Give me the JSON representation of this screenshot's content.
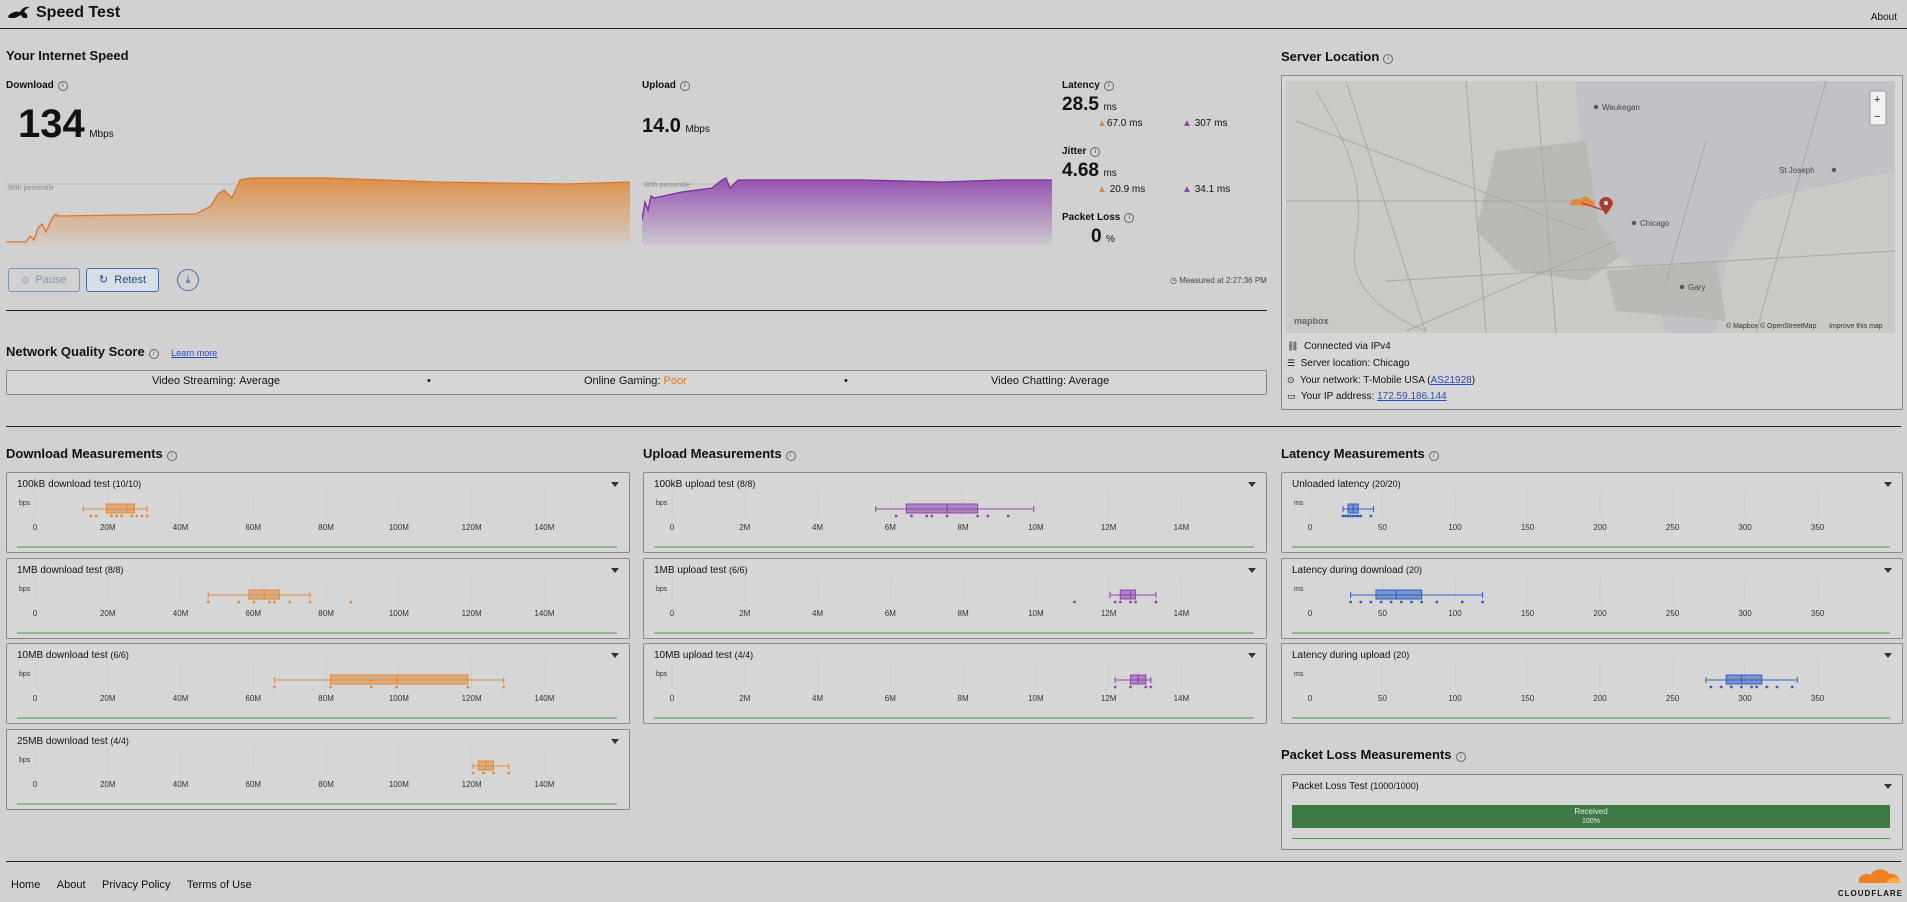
{
  "header": {
    "title": "Speed Test",
    "about": "About"
  },
  "speed": {
    "heading": "Your Internet Speed",
    "download": {
      "label": "Download",
      "value": "134",
      "unit": "Mbps",
      "percentile": "90th percentile"
    },
    "upload": {
      "label": "Upload",
      "value": "14.0",
      "unit": "Mbps",
      "percentile": "90th percentile"
    },
    "latency": {
      "label": "Latency",
      "value": "28.5",
      "unit": "ms",
      "down": "67.0 ms",
      "up": "307 ms"
    },
    "jitter": {
      "label": "Jitter",
      "value": "4.68",
      "unit": "ms",
      "down": "20.9 ms",
      "up": "34.1 ms"
    },
    "packet_loss": {
      "label": "Packet Loss",
      "value": "0",
      "unit": "%"
    },
    "pause": "Pause",
    "retest": "Retest",
    "measured": "Measured at 2:27:36 PM"
  },
  "nqs": {
    "heading": "Network Quality Score",
    "learn_more": "Learn more",
    "streaming_label": "Video Streaming:",
    "streaming_value": "Average",
    "gaming_label": "Online Gaming:",
    "gaming_value": "Poor",
    "chatting_label": "Video Chatting:",
    "chatting_value": "Average",
    "sep": "•"
  },
  "server": {
    "heading": "Server Location",
    "map_attr": "© Mapbox © OpenStreetMap",
    "improve": "Improve this map",
    "logo": "mapbox",
    "zoom_in": "+",
    "zoom_out": "−",
    "places": {
      "waukegan": "Waukegan",
      "stjoseph": "St Joseph",
      "chicago": "Chicago",
      "gary": "Gary"
    },
    "connected": "Connected via IPv4",
    "server_loc": "Server location: Chicago",
    "network_prefix": "Your network: T-Mobile USA (",
    "network_as": "AS21928",
    "network_suffix": ")",
    "ip_prefix": "Your IP address:",
    "ip": "172.59.186.144"
  },
  "sections": {
    "download": "Download Measurements",
    "upload": "Upload Measurements",
    "latency": "Latency Measurements",
    "packet": "Packet Loss Measurements"
  },
  "download_tests": [
    {
      "title": "100kB download test",
      "count": "(10/10)",
      "unit": "bps",
      "ticks": [
        "0",
        "20M",
        "40M",
        "60M",
        "80M",
        "100M",
        "120M",
        "140M"
      ]
    },
    {
      "title": "1MB download test",
      "count": "(8/8)",
      "unit": "bps",
      "ticks": [
        "0",
        "20M",
        "40M",
        "60M",
        "80M",
        "100M",
        "120M",
        "140M"
      ]
    },
    {
      "title": "10MB download test",
      "count": "(6/6)",
      "unit": "bps",
      "ticks": [
        "0",
        "20M",
        "40M",
        "60M",
        "80M",
        "100M",
        "120M",
        "140M"
      ]
    },
    {
      "title": "25MB download test",
      "count": "(4/4)",
      "unit": "bps",
      "ticks": [
        "0",
        "20M",
        "40M",
        "60M",
        "80M",
        "100M",
        "120M",
        "140M"
      ]
    }
  ],
  "upload_tests": [
    {
      "title": "100kB upload test",
      "count": "(8/8)",
      "unit": "bps",
      "ticks": [
        "0",
        "2M",
        "4M",
        "6M",
        "8M",
        "10M",
        "12M",
        "14M"
      ]
    },
    {
      "title": "1MB upload test",
      "count": "(6/6)",
      "unit": "bps",
      "ticks": [
        "0",
        "2M",
        "4M",
        "6M",
        "8M",
        "10M",
        "12M",
        "14M"
      ]
    },
    {
      "title": "10MB upload test",
      "count": "(4/4)",
      "unit": "bps",
      "ticks": [
        "0",
        "2M",
        "4M",
        "6M",
        "8M",
        "10M",
        "12M",
        "14M"
      ]
    }
  ],
  "latency_tests": [
    {
      "title": "Unloaded latency",
      "count": "(20/20)",
      "unit": "ms",
      "ticks": [
        "0",
        "50",
        "100",
        "150",
        "200",
        "250",
        "300",
        "350"
      ]
    },
    {
      "title": "Latency during download",
      "count": "(20)",
      "unit": "ms",
      "ticks": [
        "0",
        "50",
        "100",
        "150",
        "200",
        "250",
        "300",
        "350"
      ]
    },
    {
      "title": "Latency during upload",
      "count": "(20)",
      "unit": "ms",
      "ticks": [
        "0",
        "50",
        "100",
        "150",
        "200",
        "250",
        "300",
        "350"
      ]
    }
  ],
  "packet_test": {
    "title": "Packet Loss Test",
    "count": "(1000/1000)",
    "received": "Received",
    "pct": "100%"
  },
  "footer": {
    "home": "Home",
    "about": "About",
    "privacy": "Privacy Policy",
    "terms": "Terms of Use",
    "brand": "CLOUDFLARE"
  },
  "colors": {
    "download": "#e08a3c",
    "upload": "#8e44ad",
    "latency": "#2f5ec4",
    "good": "#2e7d32",
    "poor": "#e07b17"
  }
}
